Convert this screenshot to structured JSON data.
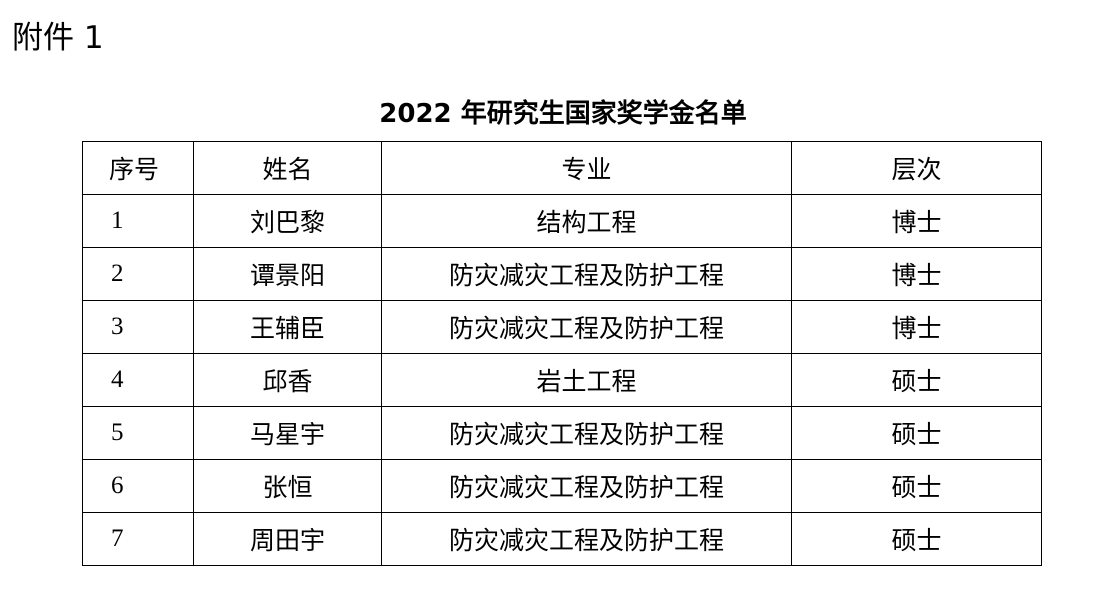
{
  "attachment_label": "附件 1",
  "title": "2022 年研究生国家奖学金名单",
  "table": {
    "headers": [
      "序号",
      "姓名",
      "专业",
      "层次"
    ],
    "rows": [
      [
        "1",
        "刘巴黎",
        "结构工程",
        "博士"
      ],
      [
        "2",
        "谭景阳",
        "防灾减灾工程及防护工程",
        "博士"
      ],
      [
        "3",
        "王辅臣",
        "防灾减灾工程及防护工程",
        "博士"
      ],
      [
        "4",
        "邱香",
        "岩土工程",
        "硕士"
      ],
      [
        "5",
        "马星宇",
        "防灾减灾工程及防护工程",
        "硕士"
      ],
      [
        "6",
        "张恒",
        "防灾减灾工程及防护工程",
        "硕士"
      ],
      [
        "7",
        "周田宇",
        "防灾减灾工程及防护工程",
        "硕士"
      ]
    ]
  }
}
